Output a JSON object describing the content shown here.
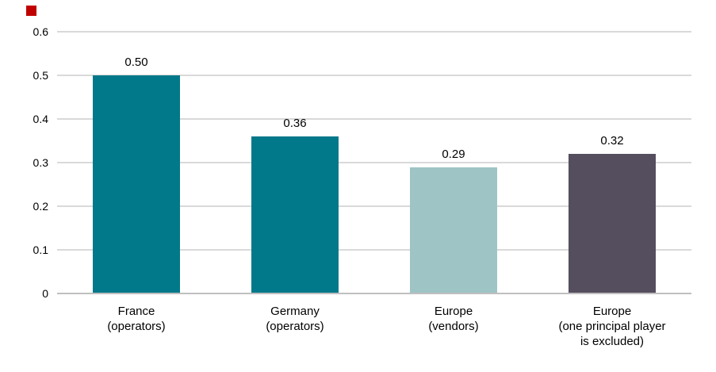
{
  "page": {
    "background": "#ffffff"
  },
  "decoration": {
    "red_square_color": "#C00000"
  },
  "chart_data": {
    "type": "bar",
    "title": "",
    "xlabel": "",
    "ylabel": "",
    "categories": [
      "France\n(operators)",
      "Germany\n(operators)",
      "Europe\n(vendors)",
      "Europe\n(one principal player\nis excluded)"
    ],
    "values": [
      0.5,
      0.36,
      0.29,
      0.32
    ],
    "value_labels": [
      "0.50",
      "0.36",
      "0.29",
      "0.32"
    ],
    "bar_colors": [
      "#02798A",
      "#02798A",
      "#9EC4C6",
      "#554E5F"
    ],
    "y_ticks": [
      0,
      0.1,
      0.2,
      0.3,
      0.4,
      0.5,
      0.6
    ],
    "y_tick_labels": [
      "0",
      "0.1",
      "0.2",
      "0.3",
      "0.4",
      "0.5",
      "0.6"
    ],
    "ylim": [
      0,
      0.6
    ],
    "grid": "horizontal",
    "gridline_color": "#D9D9D9",
    "axis_line_color": "#BFBFBF",
    "text_color": "#000000",
    "legend": "none"
  }
}
